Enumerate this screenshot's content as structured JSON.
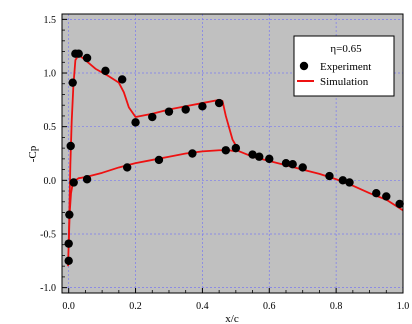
{
  "chart_data": {
    "type": "line",
    "title": "",
    "xlabel": "x/c",
    "ylabel": "-Cp",
    "xlim": [
      -0.02,
      1.0
    ],
    "ylim": [
      -1.05,
      1.55
    ],
    "x_ticks": [
      "0.0",
      "0.2",
      "0.4",
      "0.6",
      "0.8",
      "1.0"
    ],
    "x_tick_values": [
      0.0,
      0.2,
      0.4,
      0.6,
      0.8,
      1.0
    ],
    "y_ticks": [
      "-1.0",
      "-0.5",
      "0.0",
      "0.5",
      "1.0",
      "1.5"
    ],
    "y_tick_values": [
      -1.0,
      -0.5,
      0.0,
      0.5,
      1.0,
      1.5
    ],
    "grid": true,
    "grid_color": "#7a7af0",
    "plot_background": "#c0c0c0",
    "legend_position": "top-right",
    "legend_title": "η=0.65",
    "series": [
      {
        "name": "Experiment",
        "kind": "scatter",
        "color": "#000000",
        "x": [
          0.0,
          0.0,
          0.002,
          0.006,
          0.012,
          0.02,
          0.03,
          0.055,
          0.11,
          0.16,
          0.2,
          0.25,
          0.3,
          0.35,
          0.4,
          0.45,
          0.5,
          0.55,
          0.57,
          0.6,
          0.65,
          0.67,
          0.7,
          0.78,
          0.82,
          0.84,
          0.92,
          0.95,
          0.99,
          0.015,
          0.055,
          0.175,
          0.27,
          0.37,
          0.47
        ],
        "y": [
          -0.75,
          -0.59,
          -0.32,
          0.32,
          0.91,
          1.18,
          1.18,
          1.14,
          1.02,
          0.94,
          0.54,
          0.59,
          0.64,
          0.66,
          0.69,
          0.72,
          0.3,
          0.24,
          0.22,
          0.2,
          0.16,
          0.15,
          0.12,
          0.04,
          0.0,
          -0.02,
          -0.12,
          -0.15,
          -0.22,
          -0.02,
          0.01,
          0.12,
          0.19,
          0.25,
          0.28
        ]
      },
      {
        "name": "Simulation",
        "kind": "line",
        "color": "#ee1111",
        "upper": {
          "x": [
            -0.002,
            0.0,
            0.002,
            0.005,
            0.009,
            0.014,
            0.02,
            0.03,
            0.05,
            0.08,
            0.12,
            0.15,
            0.165,
            0.18,
            0.2,
            0.25,
            0.3,
            0.35,
            0.4,
            0.45,
            0.46,
            0.47,
            0.49,
            0.51,
            0.55,
            0.6,
            0.65,
            0.7,
            0.75,
            0.8,
            0.85,
            0.9,
            0.95,
            1.0
          ],
          "y": [
            -0.8,
            -0.6,
            -0.3,
            0.15,
            0.55,
            0.88,
            1.12,
            1.17,
            1.12,
            1.04,
            0.97,
            0.91,
            0.82,
            0.68,
            0.59,
            0.62,
            0.66,
            0.69,
            0.72,
            0.75,
            0.74,
            0.6,
            0.38,
            0.27,
            0.22,
            0.18,
            0.14,
            0.1,
            0.06,
            0.01,
            -0.05,
            -0.12,
            -0.18,
            -0.28
          ]
        },
        "lower": {
          "x": [
            0.0,
            0.003,
            0.007,
            0.012,
            0.02,
            0.03,
            0.05,
            0.1,
            0.15,
            0.2,
            0.25,
            0.3,
            0.35,
            0.4,
            0.45,
            0.48,
            0.5
          ],
          "y": [
            -0.6,
            -0.3,
            -0.12,
            -0.03,
            0.0,
            0.02,
            0.03,
            0.07,
            0.12,
            0.16,
            0.19,
            0.22,
            0.25,
            0.27,
            0.28,
            0.28,
            0.27
          ]
        }
      }
    ]
  }
}
